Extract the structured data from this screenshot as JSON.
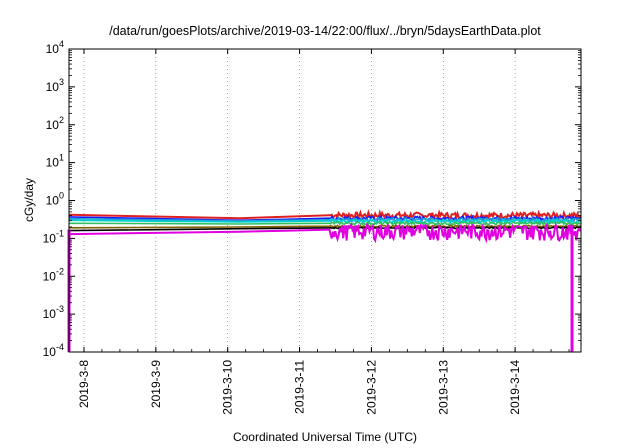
{
  "chart_data": {
    "type": "line",
    "title": "/data/run/goesPlots/archive/2019-03-14/22:00/flux/../bryn/5daysEarthData.plot",
    "xlabel": "Coordinated Universal Time (UTC)",
    "ylabel": "cGy/day",
    "y_scale": "log",
    "ylim": [
      0.0001,
      10000
    ],
    "y_ticks": [
      {
        "value": 10000,
        "base": "10",
        "exp": "4"
      },
      {
        "value": 1000,
        "base": "10",
        "exp": "3"
      },
      {
        "value": 100,
        "base": "10",
        "exp": "2"
      },
      {
        "value": 10,
        "base": "10",
        "exp": "1"
      },
      {
        "value": 1,
        "base": "10",
        "exp": "0"
      },
      {
        "value": 0.1,
        "base": "10",
        "exp": "-1"
      },
      {
        "value": 0.01,
        "base": "10",
        "exp": "-2"
      },
      {
        "value": 0.001,
        "base": "10",
        "exp": "-3"
      },
      {
        "value": 0.0001,
        "base": "10",
        "exp": "-4"
      }
    ],
    "xlim": [
      "2019-03-07T19:00",
      "2019-03-14T22:00"
    ],
    "x_ticks": [
      {
        "value": "2019-03-08T00:00",
        "label": "2019-3-8"
      },
      {
        "value": "2019-03-09T00:00",
        "label": "2019-3-9"
      },
      {
        "value": "2019-03-10T00:00",
        "label": "2019-3-10"
      },
      {
        "value": "2019-03-11T00:00",
        "label": "2019-3-11"
      },
      {
        "value": "2019-03-12T00:00",
        "label": "2019-3-12"
      },
      {
        "value": "2019-03-13T00:00",
        "label": "2019-3-13"
      },
      {
        "value": "2019-03-14T00:00",
        "label": "2019-3-14"
      }
    ],
    "grid": "vertical dotted at x ticks",
    "gap_region": [
      "2019-03-10T07:00",
      "2019-03-11T10:00"
    ],
    "series": [
      {
        "color": "#e02020",
        "points": [
          [
            "2019-03-07T19:00",
            0.42
          ],
          [
            "2019-03-10T04:00",
            0.34
          ],
          [
            "2019-03-11T10:00",
            0.41
          ],
          [
            "2019-03-14T22:00",
            0.4
          ]
        ],
        "noise": 0.35
      },
      {
        "color": "#1a1aff",
        "points": [
          [
            "2019-03-07T19:00",
            0.37
          ],
          [
            "2019-03-10T04:00",
            0.3
          ],
          [
            "2019-03-11T10:00",
            0.34
          ],
          [
            "2019-03-14T22:00",
            0.34
          ]
        ],
        "noise": 0.25
      },
      {
        "color": "#20a0d0",
        "points": [
          [
            "2019-03-07T19:00",
            0.33
          ],
          [
            "2019-03-10T04:00",
            0.29
          ],
          [
            "2019-03-11T10:00",
            0.31
          ],
          [
            "2019-03-14T22:00",
            0.31
          ]
        ],
        "noise": 0.22
      },
      {
        "color": "#00d0d0",
        "points": [
          [
            "2019-03-07T19:00",
            0.3
          ],
          [
            "2019-03-10T04:00",
            0.27
          ],
          [
            "2019-03-11T10:00",
            0.29
          ],
          [
            "2019-03-14T22:00",
            0.28
          ]
        ],
        "noise": 0.2
      },
      {
        "color": "#30c060",
        "points": [
          [
            "2019-03-07T19:00",
            0.25
          ],
          [
            "2019-03-10T04:00",
            0.24
          ],
          [
            "2019-03-11T10:00",
            0.25
          ],
          [
            "2019-03-14T22:00",
            0.25
          ]
        ],
        "noise": 0.15
      },
      {
        "color": "#806000",
        "points": [
          [
            "2019-03-07T19:00",
            0.19
          ],
          [
            "2019-03-10T04:00",
            0.2
          ],
          [
            "2019-03-11T10:00",
            0.21
          ],
          [
            "2019-03-14T22:00",
            0.21
          ]
        ],
        "noise": 0.1
      },
      {
        "color": "#000000",
        "points": [
          [
            "2019-03-07T19:00",
            0.16
          ],
          [
            "2019-03-10T04:00",
            0.18
          ],
          [
            "2019-03-11T10:00",
            0.19
          ],
          [
            "2019-03-14T22:00",
            0.19
          ]
        ],
        "noise": 0.08
      },
      {
        "color": "#e000e0",
        "points": [
          [
            "2019-03-07T19:00",
            0.13
          ],
          [
            "2019-03-10T04:00",
            0.15
          ],
          [
            "2019-03-11T10:00",
            0.17
          ],
          [
            "2019-03-14T22:00",
            0.17
          ]
        ],
        "noise": 0.6,
        "dropouts": [
          [
            "2019-03-07T19:00",
            0.0001
          ],
          [
            "2019-03-14T19:00",
            0.0001
          ]
        ]
      }
    ]
  }
}
